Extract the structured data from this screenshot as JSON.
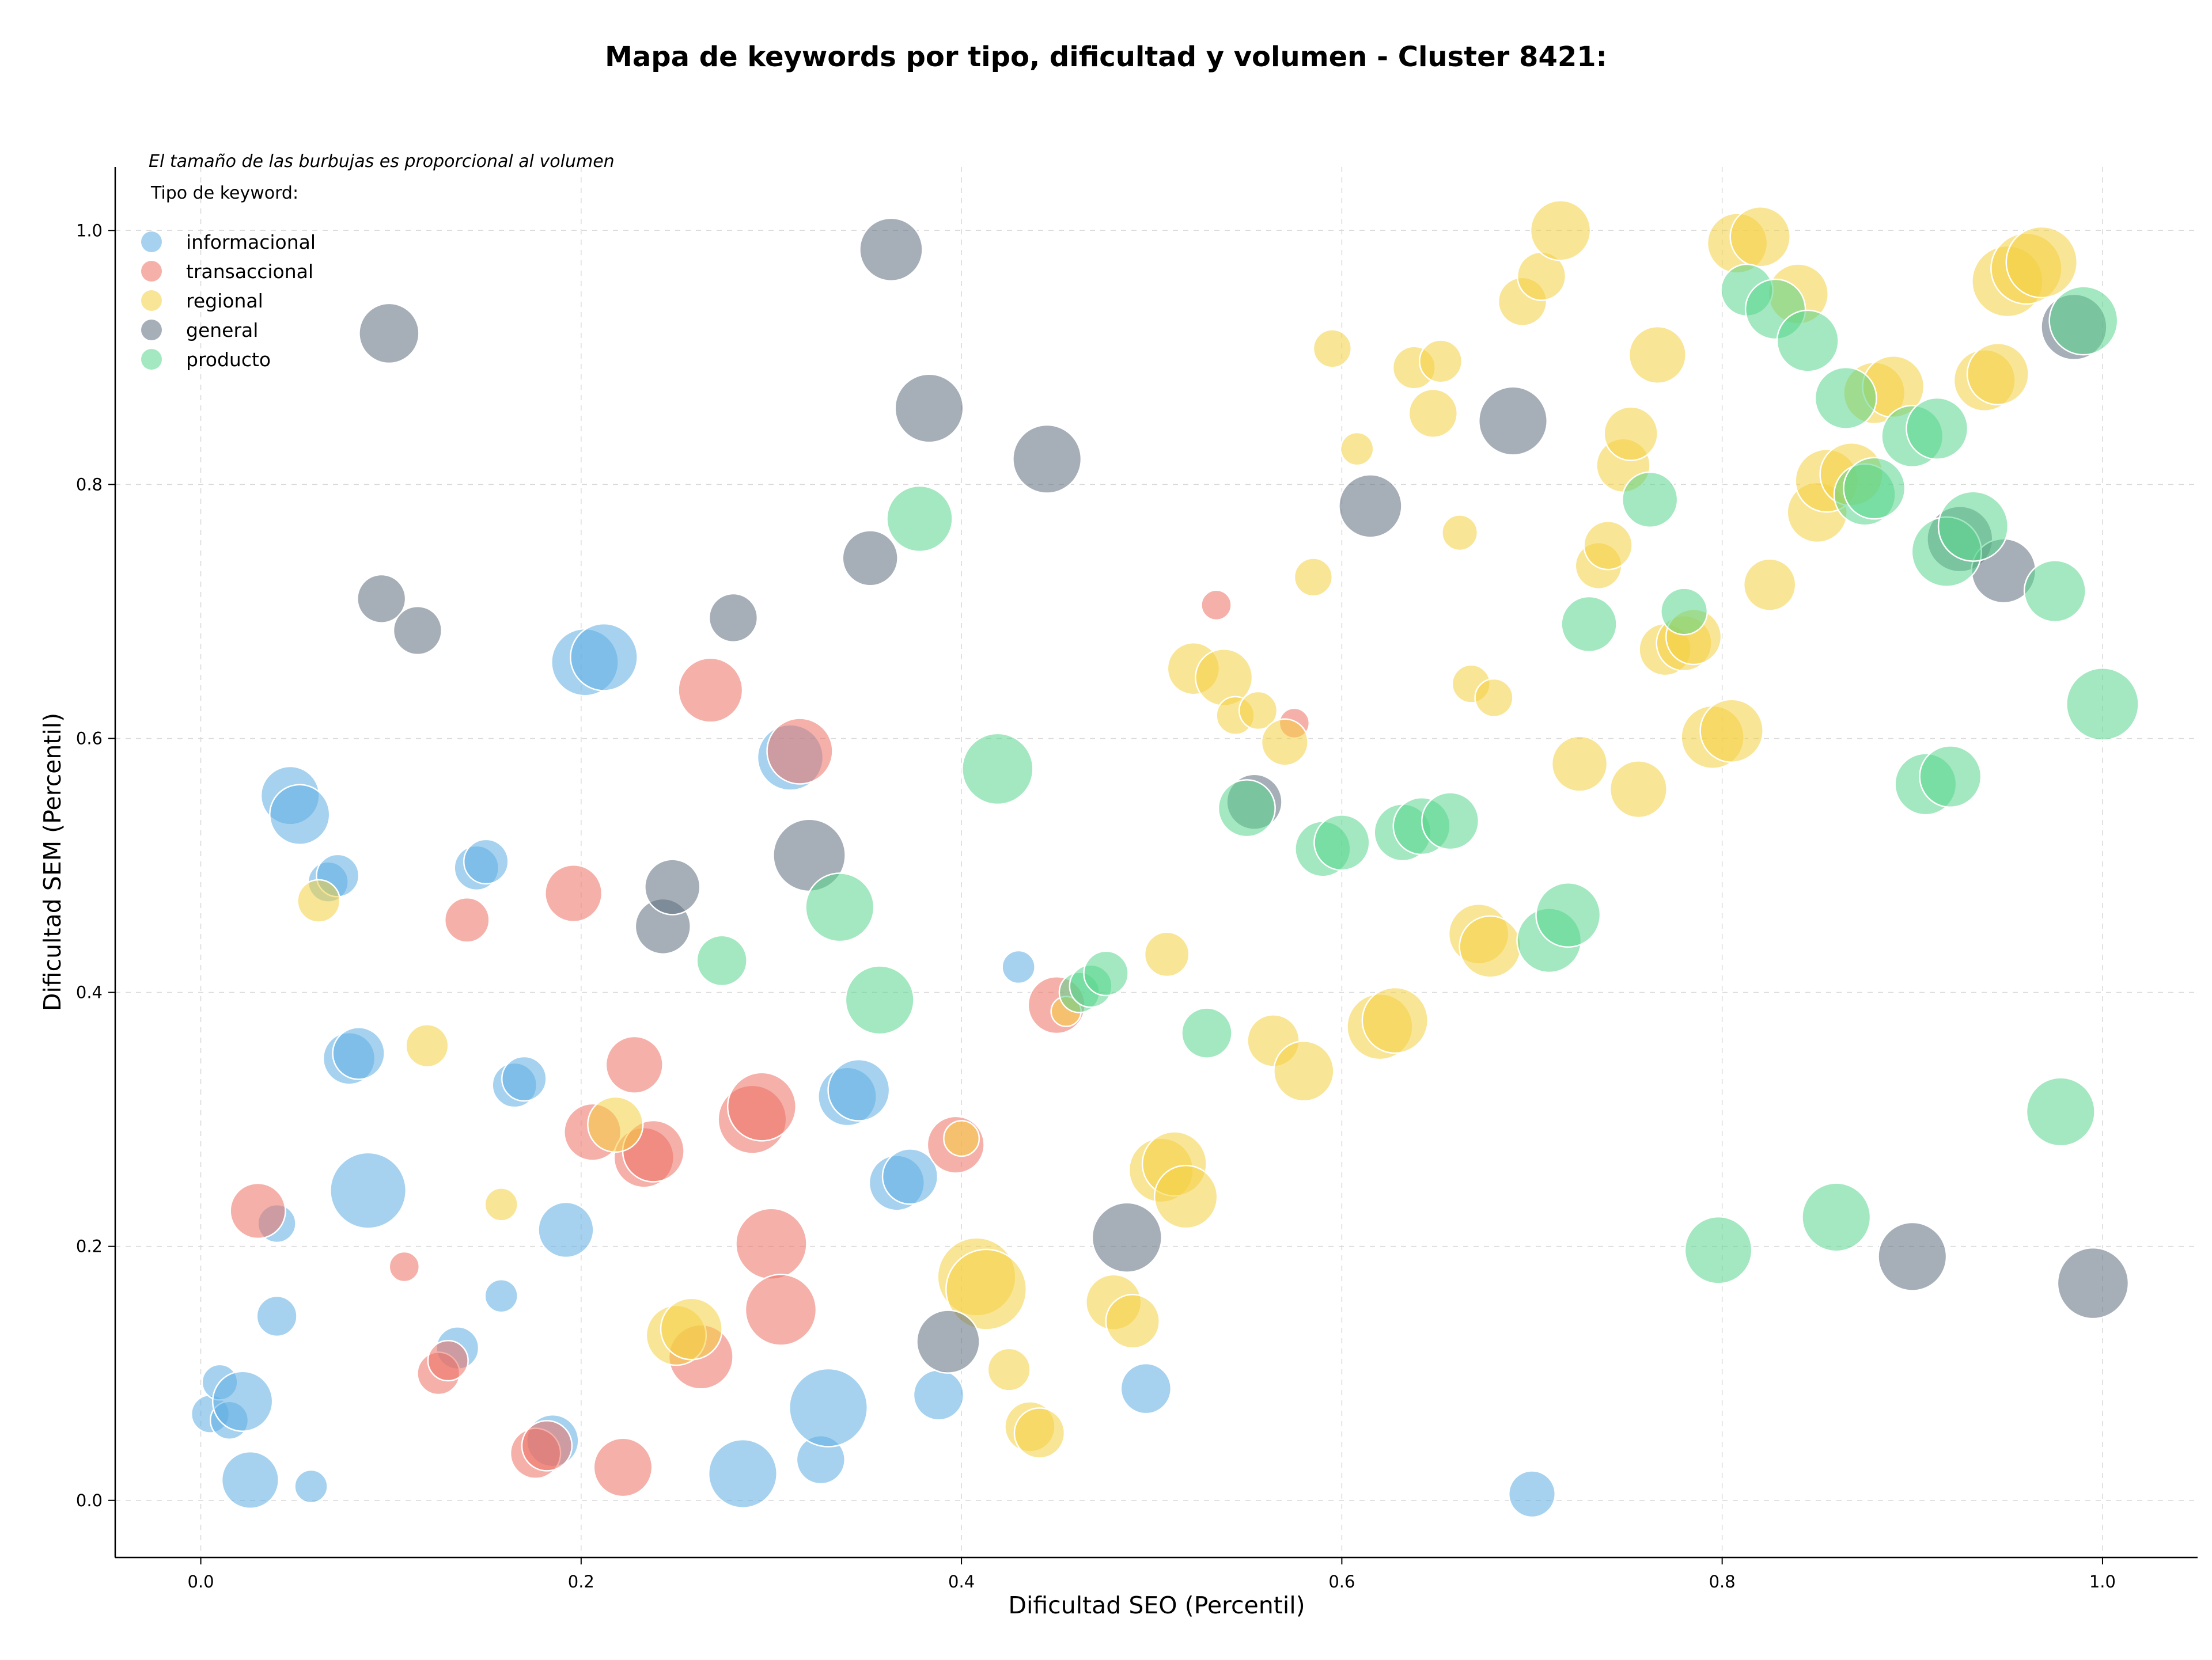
{
  "chart_data": {
    "type": "scatter",
    "title": "Mapa de keywords por tipo, dificultad y volumen - Cluster 8421:",
    "subtitle": "El tamaño de las burbujas es proporcional al volumen",
    "xlabel": "Dificultad SEO (Percentil)",
    "ylabel": "Dificultad SEM (Percentil)",
    "xlim": [
      -0.045,
      1.05
    ],
    "ylim": [
      -0.045,
      1.05
    ],
    "xticks": [
      0.0,
      0.2,
      0.4,
      0.6,
      0.8,
      1.0
    ],
    "yticks": [
      0.0,
      0.2,
      0.4,
      0.6,
      0.8,
      1.0
    ],
    "tick_labels_x": [
      "0.0",
      "0.2",
      "0.4",
      "0.6",
      "0.8",
      "1.0"
    ],
    "tick_labels_y": [
      "0.0",
      "0.2",
      "0.4",
      "0.6",
      "0.8",
      "1.0"
    ],
    "grid": true,
    "legend_title": "Tipo de keyword:",
    "legend_position": "top-left",
    "bubble_opacity": 0.55,
    "series": [
      {
        "name": "informacional",
        "color": "#5DADE2",
        "points": [
          [
            0.005,
            0.068,
            0.4
          ],
          [
            0.01,
            0.093,
            0.35
          ],
          [
            0.015,
            0.063,
            0.4
          ],
          [
            0.022,
            0.078,
            1.0
          ],
          [
            0.026,
            0.016,
            0.9
          ],
          [
            0.04,
            0.145,
            0.45
          ],
          [
            0.04,
            0.218,
            0.4
          ],
          [
            0.047,
            0.555,
            0.95
          ],
          [
            0.052,
            0.54,
            1.0
          ],
          [
            0.058,
            0.011,
            0.3
          ],
          [
            0.067,
            0.487,
            0.45
          ],
          [
            0.072,
            0.492,
            0.5
          ],
          [
            0.078,
            0.348,
            0.75
          ],
          [
            0.083,
            0.352,
            0.75
          ],
          [
            0.088,
            0.244,
            1.6
          ],
          [
            0.135,
            0.12,
            0.5
          ],
          [
            0.145,
            0.498,
            0.55
          ],
          [
            0.15,
            0.503,
            0.55
          ],
          [
            0.158,
            0.161,
            0.3
          ],
          [
            0.165,
            0.327,
            0.55
          ],
          [
            0.17,
            0.332,
            0.55
          ],
          [
            0.185,
            0.047,
            0.75
          ],
          [
            0.192,
            0.213,
            0.85
          ],
          [
            0.202,
            0.66,
            1.25
          ],
          [
            0.212,
            0.664,
            1.25
          ],
          [
            0.285,
            0.021,
            1.3
          ],
          [
            0.31,
            0.585,
            1.2
          ],
          [
            0.326,
            0.032,
            0.65
          ],
          [
            0.33,
            0.073,
            1.7
          ],
          [
            0.34,
            0.318,
            0.95
          ],
          [
            0.346,
            0.323,
            1.05
          ],
          [
            0.366,
            0.25,
            0.85
          ],
          [
            0.373,
            0.255,
            0.85
          ],
          [
            0.388,
            0.083,
            0.7
          ],
          [
            0.43,
            0.42,
            0.3
          ],
          [
            0.497,
            0.088,
            0.7
          ],
          [
            0.7,
            0.005,
            0.6
          ]
        ]
      },
      {
        "name": "transaccional",
        "color": "#EC7063",
        "points": [
          [
            0.03,
            0.228,
            0.85
          ],
          [
            0.107,
            0.184,
            0.25
          ],
          [
            0.125,
            0.1,
            0.5
          ],
          [
            0.13,
            0.11,
            0.45
          ],
          [
            0.14,
            0.457,
            0.55
          ],
          [
            0.176,
            0.037,
            0.7
          ],
          [
            0.182,
            0.043,
            0.7
          ],
          [
            0.196,
            0.478,
            0.9
          ],
          [
            0.206,
            0.29,
            0.9
          ],
          [
            0.228,
            0.343,
            0.9
          ],
          [
            0.233,
            0.27,
            1.0
          ],
          [
            0.238,
            0.275,
            1.05
          ],
          [
            0.222,
            0.026,
            0.95
          ],
          [
            0.263,
            0.113,
            1.15
          ],
          [
            0.268,
            0.638,
            1.15
          ],
          [
            0.29,
            0.3,
            1.3
          ],
          [
            0.295,
            0.31,
            1.3
          ],
          [
            0.3,
            0.202,
            1.4
          ],
          [
            0.305,
            0.15,
            1.4
          ],
          [
            0.315,
            0.59,
            1.2
          ],
          [
            0.397,
            0.28,
            0.9
          ],
          [
            0.45,
            0.39,
            0.9
          ],
          [
            0.534,
            0.705,
            0.25
          ],
          [
            0.575,
            0.612,
            0.25
          ]
        ]
      },
      {
        "name": "regional",
        "color": "#F4D03F",
        "points": [
          [
            0.062,
            0.472,
            0.5
          ],
          [
            0.119,
            0.358,
            0.5
          ],
          [
            0.158,
            0.233,
            0.3
          ],
          [
            0.218,
            0.296,
            0.85
          ],
          [
            0.25,
            0.13,
            1.0
          ],
          [
            0.258,
            0.135,
            1.05
          ],
          [
            0.4,
            0.285,
            0.35
          ],
          [
            0.408,
            0.176,
            1.7
          ],
          [
            0.413,
            0.166,
            1.8
          ],
          [
            0.425,
            0.103,
            0.5
          ],
          [
            0.436,
            0.058,
            0.7
          ],
          [
            0.441,
            0.053,
            0.7
          ],
          [
            0.455,
            0.385,
            0.25
          ],
          [
            0.48,
            0.156,
            0.85
          ],
          [
            0.49,
            0.141,
            0.8
          ],
          [
            0.505,
            0.26,
            1.15
          ],
          [
            0.512,
            0.265,
            1.15
          ],
          [
            0.518,
            0.239,
            1.1
          ],
          [
            0.508,
            0.43,
            0.55
          ],
          [
            0.522,
            0.655,
            0.75
          ],
          [
            0.538,
            0.648,
            0.9
          ],
          [
            0.544,
            0.618,
            0.4
          ],
          [
            0.556,
            0.622,
            0.4
          ],
          [
            0.564,
            0.362,
            0.75
          ],
          [
            0.58,
            0.338,
            1.0
          ],
          [
            0.57,
            0.597,
            0.6
          ],
          [
            0.585,
            0.727,
            0.4
          ],
          [
            0.595,
            0.907,
            0.4
          ],
          [
            0.608,
            0.828,
            0.3
          ],
          [
            0.62,
            0.373,
            1.2
          ],
          [
            0.628,
            0.378,
            1.2
          ],
          [
            0.638,
            0.892,
            0.5
          ],
          [
            0.648,
            0.856,
            0.65
          ],
          [
            0.652,
            0.897,
            0.5
          ],
          [
            0.662,
            0.762,
            0.35
          ],
          [
            0.668,
            0.643,
            0.4
          ],
          [
            0.68,
            0.632,
            0.4
          ],
          [
            0.672,
            0.446,
            1.0
          ],
          [
            0.678,
            0.436,
            1.05
          ],
          [
            0.695,
            0.944,
            0.65
          ],
          [
            0.705,
            0.964,
            0.65
          ],
          [
            0.715,
            1.0,
            1.0
          ],
          [
            0.725,
            0.58,
            0.85
          ],
          [
            0.735,
            0.736,
            0.6
          ],
          [
            0.74,
            0.752,
            0.65
          ],
          [
            0.748,
            0.815,
            0.8
          ],
          [
            0.752,
            0.84,
            0.8
          ],
          [
            0.756,
            0.56,
            0.9
          ],
          [
            0.766,
            0.902,
            0.9
          ],
          [
            0.77,
            0.67,
            0.75
          ],
          [
            0.78,
            0.675,
            0.85
          ],
          [
            0.785,
            0.68,
            0.85
          ],
          [
            0.795,
            0.601,
            1.1
          ],
          [
            0.805,
            0.606,
            1.1
          ],
          [
            0.808,
            0.99,
            1.0
          ],
          [
            0.82,
            0.995,
            1.0
          ],
          [
            0.825,
            0.721,
            0.75
          ],
          [
            0.84,
            0.95,
            1.0
          ],
          [
            0.85,
            0.778,
            1.0
          ],
          [
            0.855,
            0.803,
            1.1
          ],
          [
            0.868,
            0.808,
            1.1
          ],
          [
            0.88,
            0.872,
            1.05
          ],
          [
            0.89,
            0.877,
            1.05
          ],
          [
            0.938,
            0.882,
            1.05
          ],
          [
            0.945,
            0.887,
            1.05
          ],
          [
            0.95,
            0.96,
            1.4
          ],
          [
            0.96,
            0.97,
            1.4
          ],
          [
            0.968,
            0.975,
            1.4
          ]
        ]
      },
      {
        "name": "general",
        "color": "#5D6D7E",
        "points": [
          [
            0.095,
            0.71,
            0.65
          ],
          [
            0.099,
            0.919,
            1.0
          ],
          [
            0.114,
            0.685,
            0.65
          ],
          [
            0.243,
            0.452,
            0.85
          ],
          [
            0.248,
            0.483,
            0.85
          ],
          [
            0.28,
            0.695,
            0.65
          ],
          [
            0.32,
            0.508,
            1.45
          ],
          [
            0.352,
            0.742,
            0.85
          ],
          [
            0.363,
            0.985,
            1.1
          ],
          [
            0.383,
            0.86,
            1.3
          ],
          [
            0.393,
            0.125,
            1.1
          ],
          [
            0.445,
            0.82,
            1.3
          ],
          [
            0.487,
            0.207,
            1.35
          ],
          [
            0.554,
            0.55,
            0.85
          ],
          [
            0.615,
            0.783,
            1.1
          ],
          [
            0.69,
            0.85,
            1.3
          ],
          [
            0.9,
            0.192,
            1.3
          ],
          [
            0.925,
            0.757,
            1.2
          ],
          [
            0.948,
            0.732,
            1.15
          ],
          [
            0.985,
            0.924,
            1.2
          ],
          [
            0.995,
            0.171,
            1.4
          ]
        ]
      },
      {
        "name": "producto",
        "color": "#58D68D",
        "points": [
          [
            0.274,
            0.425,
            0.7
          ],
          [
            0.336,
            0.467,
            1.3
          ],
          [
            0.357,
            0.394,
            1.3
          ],
          [
            0.378,
            0.773,
            1.2
          ],
          [
            0.419,
            0.576,
            1.4
          ],
          [
            0.462,
            0.4,
            0.45
          ],
          [
            0.468,
            0.405,
            0.5
          ],
          [
            0.476,
            0.415,
            0.55
          ],
          [
            0.529,
            0.368,
            0.7
          ],
          [
            0.55,
            0.545,
            0.9
          ],
          [
            0.59,
            0.513,
            0.85
          ],
          [
            0.6,
            0.518,
            0.85
          ],
          [
            0.632,
            0.526,
            0.9
          ],
          [
            0.642,
            0.531,
            0.9
          ],
          [
            0.657,
            0.535,
            0.9
          ],
          [
            0.709,
            0.441,
            1.15
          ],
          [
            0.719,
            0.461,
            1.15
          ],
          [
            0.73,
            0.69,
            0.85
          ],
          [
            0.762,
            0.788,
            0.85
          ],
          [
            0.78,
            0.7,
            0.6
          ],
          [
            0.798,
            0.197,
            1.25
          ],
          [
            0.813,
            0.953,
            0.75
          ],
          [
            0.828,
            0.938,
            1.0
          ],
          [
            0.845,
            0.913,
            1.05
          ],
          [
            0.86,
            0.223,
            1.3
          ],
          [
            0.865,
            0.868,
            1.05
          ],
          [
            0.875,
            0.792,
            1.05
          ],
          [
            0.88,
            0.797,
            1.05
          ],
          [
            0.9,
            0.838,
            1.05
          ],
          [
            0.913,
            0.844,
            1.05
          ],
          [
            0.907,
            0.564,
            1.05
          ],
          [
            0.92,
            0.57,
            1.05
          ],
          [
            0.918,
            0.747,
            1.35
          ],
          [
            0.932,
            0.767,
            1.35
          ],
          [
            0.975,
            0.716,
            1.05
          ],
          [
            0.978,
            0.306,
            1.3
          ],
          [
            0.99,
            0.929,
            1.3
          ],
          [
            1.0,
            0.627,
            1.45
          ]
        ]
      }
    ]
  }
}
